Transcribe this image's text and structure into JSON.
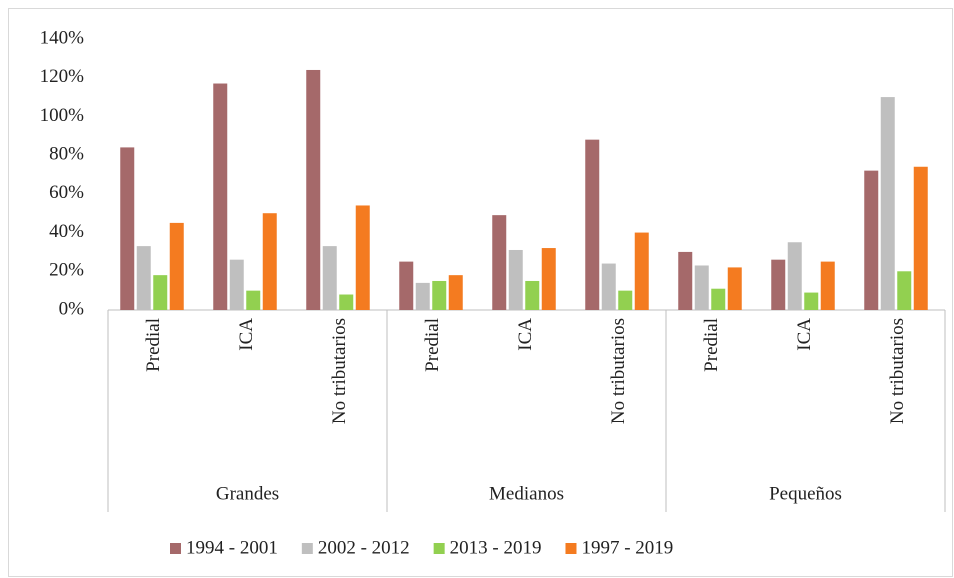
{
  "chart_data": {
    "type": "bar",
    "categories": [
      "Predial",
      "ICA",
      "No tributarios",
      "Predial",
      "ICA",
      "No tributarios",
      "Predial",
      "ICA",
      "No tributarios"
    ],
    "groups": [
      "Grandes",
      "Medianos",
      "Pequeños"
    ],
    "series": [
      {
        "name": "1994 - 2001",
        "color": "#a5696a",
        "values": [
          84,
          117,
          124,
          25,
          49,
          88,
          30,
          26,
          72
        ]
      },
      {
        "name": "2002 - 2012",
        "color": "#bfbfbf",
        "values": [
          33,
          26,
          33,
          14,
          31,
          24,
          23,
          35,
          110
        ]
      },
      {
        "name": "2013 - 2019",
        "color": "#92d050",
        "values": [
          18,
          10,
          8,
          15,
          15,
          10,
          11,
          9,
          20
        ]
      },
      {
        "name": "1997 - 2019",
        "color": "#f47b20",
        "values": [
          45,
          50,
          54,
          18,
          32,
          40,
          22,
          25,
          74
        ]
      }
    ],
    "ylim": [
      0,
      140
    ],
    "yticks": [
      {
        "value": 0,
        "label": "0%"
      },
      {
        "value": 20,
        "label": "20%"
      },
      {
        "value": 40,
        "label": "40%"
      },
      {
        "value": 60,
        "label": "60%"
      },
      {
        "value": 80,
        "label": "80%"
      },
      {
        "value": 100,
        "label": "100%"
      },
      {
        "value": 120,
        "label": "120%"
      },
      {
        "value": 140,
        "label": "140%"
      }
    ],
    "grid": false,
    "legend": "bottom"
  }
}
